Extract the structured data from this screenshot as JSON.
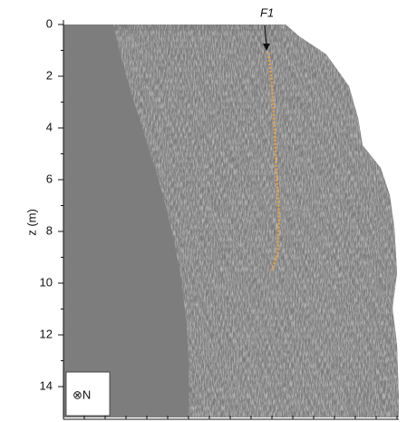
{
  "chart_data": {
    "type": "image",
    "ylabel": "z (m)",
    "ylim": [
      0,
      15
    ],
    "yticks": [
      0,
      2,
      4,
      6,
      8,
      10,
      12,
      14
    ],
    "annotation": "F1",
    "orientation_label": "⊗N"
  }
}
